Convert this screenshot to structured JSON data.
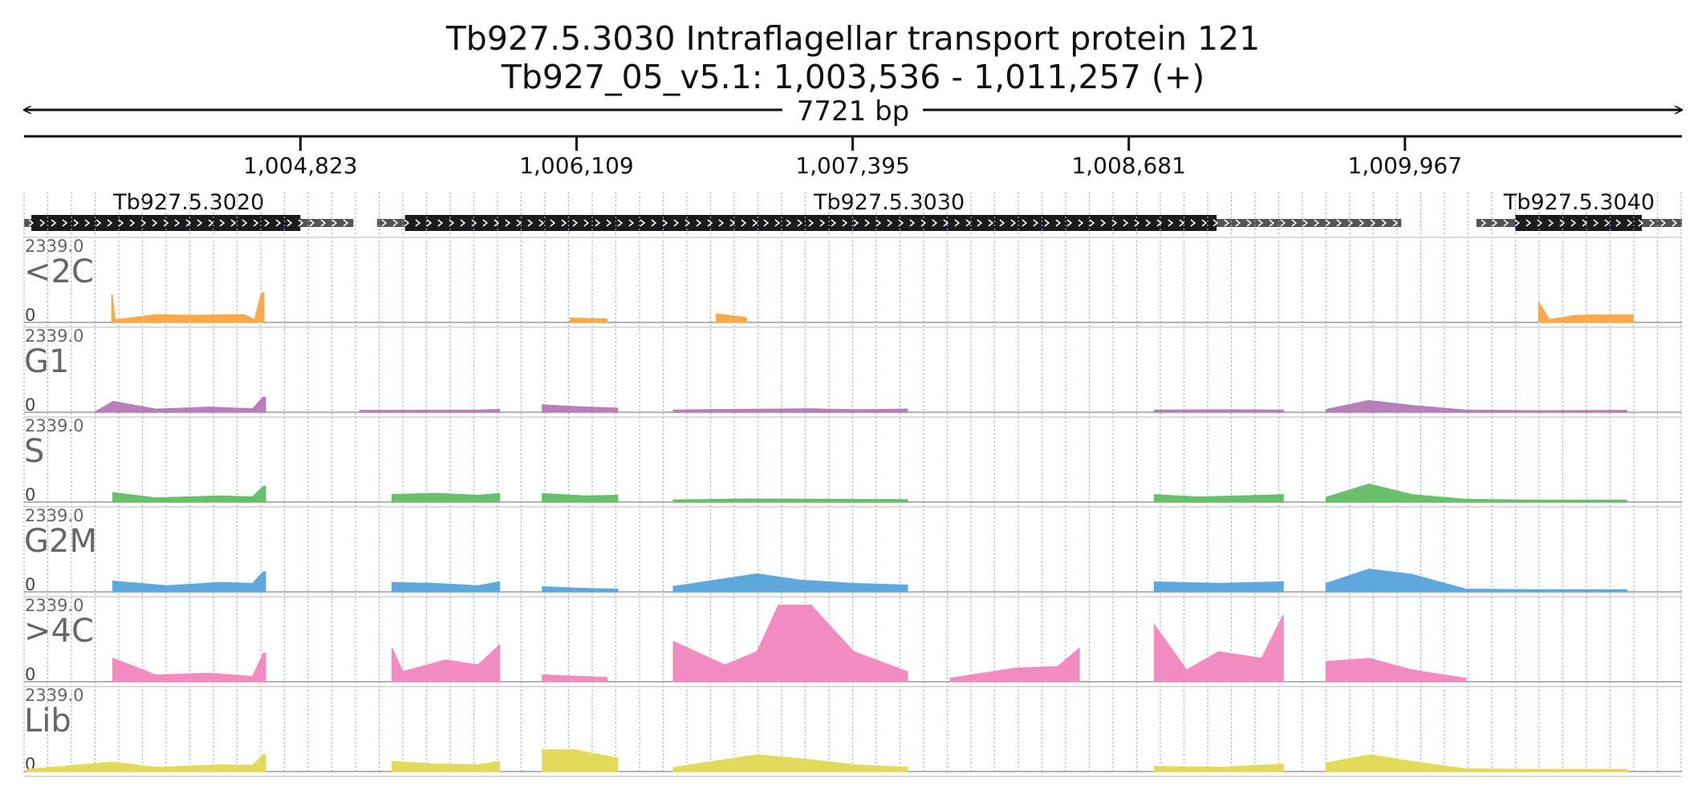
{
  "title": "Tb927.5.3030  Intraflagellar transport protein 121",
  "subtitle": "Tb927_05_v5.1: 1,003,536 - 1,011,257 (+)",
  "colors": {
    "<2C": "#F9A94B",
    "G1": "#B77FB8",
    "S": "#69BF6B",
    "G2M": "#5FA8DE",
    ">4C": "#F28BC0",
    "Lib": "#E2DA5C",
    "gene_thick": "#1b1b1b",
    "gene_thin": "#545454",
    "grid": "#7FB2E5",
    "baseline": "#888888"
  },
  "chart_data": {
    "type": "area",
    "genome": "Tb927_05_v5.1",
    "start": 1003536,
    "end": 1011257,
    "strand": "+",
    "span_label": "7721 bp",
    "x_ticks": [
      {
        "pos": 1004823,
        "label": "1,004,823"
      },
      {
        "pos": 1006109,
        "label": "1,006,109"
      },
      {
        "pos": 1007395,
        "label": "1,007,395"
      },
      {
        "pos": 1008681,
        "label": "1,008,681"
      },
      {
        "pos": 1009967,
        "label": "1,009,967"
      }
    ],
    "genes": [
      {
        "name": "Tb927.5.3020",
        "start": 1003536,
        "end": 1005070,
        "cds_start": 1003570,
        "cds_end": 1004823
      },
      {
        "name": "Tb927.5.3030",
        "start": 1005180,
        "end": 1009950,
        "cds_start": 1005310,
        "cds_end": 1009090
      },
      {
        "name": "Tb927.5.3040",
        "start": 1010300,
        "end": 1011257,
        "cds_start": 1010480,
        "cds_end": 1011070
      }
    ],
    "ylim": [
      0,
      2339.0
    ],
    "y_max_label": "2339.0",
    "y_min_label": "0",
    "tracks": [
      {
        "name": "<2C",
        "segments": [
          [
            [
              1003945,
              850
            ],
            [
              1003960,
              80
            ],
            [
              1004030,
              130
            ],
            [
              1004150,
              230
            ],
            [
              1004300,
              210
            ],
            [
              1004450,
              220
            ],
            [
              1004560,
              230
            ],
            [
              1004610,
              80
            ],
            [
              1004640,
              850
            ],
            [
              1004652,
              900
            ]
          ],
          [
            [
              1006080,
              130
            ],
            [
              1006250,
              100
            ]
          ],
          [
            [
              1006760,
              250
            ],
            [
              1006900,
              140
            ]
          ],
          [
            [
              1010590,
              600
            ],
            [
              1010640,
              80
            ],
            [
              1010750,
              200
            ],
            [
              1010830,
              220
            ],
            [
              1011030,
              220
            ]
          ]
        ]
      },
      {
        "name": "G1",
        "segments": [
          [
            [
              1003870,
              20
            ],
            [
              1003950,
              320
            ],
            [
              1004150,
              90
            ],
            [
              1004400,
              150
            ],
            [
              1004600,
              100
            ],
            [
              1004650,
              450
            ],
            [
              1004660,
              450
            ]
          ],
          [
            [
              1005100,
              50
            ],
            [
              1005230,
              50
            ],
            [
              1005650,
              60
            ],
            [
              1005750,
              80
            ]
          ],
          [
            [
              1005950,
              220
            ],
            [
              1006150,
              150
            ],
            [
              1006300,
              120
            ]
          ],
          [
            [
              1006560,
              60
            ],
            [
              1006800,
              80
            ],
            [
              1007200,
              100
            ],
            [
              1007400,
              70
            ],
            [
              1007650,
              90
            ]
          ],
          [
            [
              1008800,
              60
            ],
            [
              1009150,
              70
            ],
            [
              1009400,
              60
            ]
          ],
          [
            [
              1009600,
              80
            ],
            [
              1009800,
              350
            ],
            [
              1010000,
              200
            ],
            [
              1010250,
              60
            ],
            [
              1010600,
              40
            ],
            [
              1011000,
              50
            ]
          ]
        ]
      },
      {
        "name": "S",
        "segments": [
          [
            [
              1003950,
              280
            ],
            [
              1004150,
              120
            ],
            [
              1004450,
              180
            ],
            [
              1004600,
              150
            ],
            [
              1004650,
              470
            ],
            [
              1004660,
              470
            ]
          ],
          [
            [
              1005250,
              220
            ],
            [
              1005450,
              260
            ],
            [
              1005650,
              200
            ],
            [
              1005750,
              250
            ]
          ],
          [
            [
              1005950,
              250
            ],
            [
              1006150,
              180
            ],
            [
              1006300,
              200
            ]
          ],
          [
            [
              1006560,
              60
            ],
            [
              1006900,
              90
            ],
            [
              1007300,
              80
            ],
            [
              1007650,
              70
            ]
          ],
          [
            [
              1008800,
              220
            ],
            [
              1009000,
              150
            ],
            [
              1009300,
              200
            ],
            [
              1009400,
              220
            ]
          ],
          [
            [
              1009600,
              140
            ],
            [
              1009800,
              540
            ],
            [
              1010000,
              220
            ],
            [
              1010250,
              80
            ],
            [
              1010600,
              50
            ],
            [
              1011000,
              50
            ]
          ]
        ]
      },
      {
        "name": "G2M",
        "segments": [
          [
            [
              1003950,
              320
            ],
            [
              1004200,
              180
            ],
            [
              1004450,
              280
            ],
            [
              1004600,
              250
            ],
            [
              1004650,
              600
            ],
            [
              1004660,
              600
            ]
          ],
          [
            [
              1005250,
              280
            ],
            [
              1005450,
              250
            ],
            [
              1005650,
              180
            ],
            [
              1005750,
              300
            ]
          ],
          [
            [
              1005950,
              150
            ],
            [
              1006150,
              100
            ],
            [
              1006300,
              80
            ]
          ],
          [
            [
              1006560,
              160
            ],
            [
              1006950,
              540
            ],
            [
              1007150,
              350
            ],
            [
              1007400,
              250
            ],
            [
              1007650,
              200
            ]
          ],
          [
            [
              1008800,
              300
            ],
            [
              1009100,
              250
            ],
            [
              1009400,
              300
            ]
          ],
          [
            [
              1009600,
              250
            ],
            [
              1009800,
              680
            ],
            [
              1010000,
              520
            ],
            [
              1010250,
              80
            ],
            [
              1010600,
              60
            ],
            [
              1011000,
              60
            ]
          ]
        ]
      },
      {
        "name": ">4C",
        "segments": [
          [
            [
              1003950,
              700
            ],
            [
              1004150,
              200
            ],
            [
              1004400,
              250
            ],
            [
              1004600,
              150
            ],
            [
              1004650,
              850
            ],
            [
              1004660,
              850
            ]
          ],
          [
            [
              1005250,
              1000
            ],
            [
              1005300,
              300
            ],
            [
              1005500,
              650
            ],
            [
              1005650,
              500
            ],
            [
              1005750,
              1100
            ]
          ],
          [
            [
              1005950,
              200
            ],
            [
              1006150,
              150
            ],
            [
              1006250,
              120
            ]
          ],
          [
            [
              1006560,
              1200
            ],
            [
              1006800,
              500
            ],
            [
              1006950,
              900
            ],
            [
              1007050,
              2300
            ],
            [
              1007200,
              2300
            ],
            [
              1007400,
              900
            ],
            [
              1007650,
              300
            ]
          ],
          [
            [
              1007850,
              100
            ],
            [
              1008150,
              400
            ],
            [
              1008350,
              450
            ],
            [
              1008450,
              1000
            ]
          ],
          [
            [
              1008800,
              1700
            ],
            [
              1008950,
              350
            ],
            [
              1009100,
              900
            ],
            [
              1009300,
              700
            ],
            [
              1009400,
              2000
            ]
          ],
          [
            [
              1009600,
              600
            ],
            [
              1009800,
              700
            ],
            [
              1010000,
              350
            ],
            [
              1010250,
              100
            ]
          ]
        ]
      },
      {
        "name": "Lib",
        "segments": [
          [
            [
              1003550,
              60
            ],
            [
              1003950,
              280
            ],
            [
              1004150,
              120
            ],
            [
              1004450,
              200
            ],
            [
              1004600,
              180
            ],
            [
              1004650,
              500
            ],
            [
              1004660,
              500
            ]
          ],
          [
            [
              1005250,
              300
            ],
            [
              1005450,
              220
            ],
            [
              1005650,
              200
            ],
            [
              1005750,
              300
            ]
          ],
          [
            [
              1005950,
              650
            ],
            [
              1006100,
              650
            ],
            [
              1006300,
              400
            ]
          ],
          [
            [
              1006560,
              120
            ],
            [
              1006950,
              500
            ],
            [
              1007200,
              350
            ],
            [
              1007400,
              200
            ],
            [
              1007650,
              120
            ]
          ],
          [
            [
              1008800,
              150
            ],
            [
              1009100,
              120
            ],
            [
              1009400,
              220
            ]
          ],
          [
            [
              1009600,
              250
            ],
            [
              1009800,
              500
            ],
            [
              1010000,
              300
            ],
            [
              1010250,
              80
            ],
            [
              1010600,
              60
            ],
            [
              1011000,
              60
            ]
          ]
        ]
      }
    ]
  }
}
